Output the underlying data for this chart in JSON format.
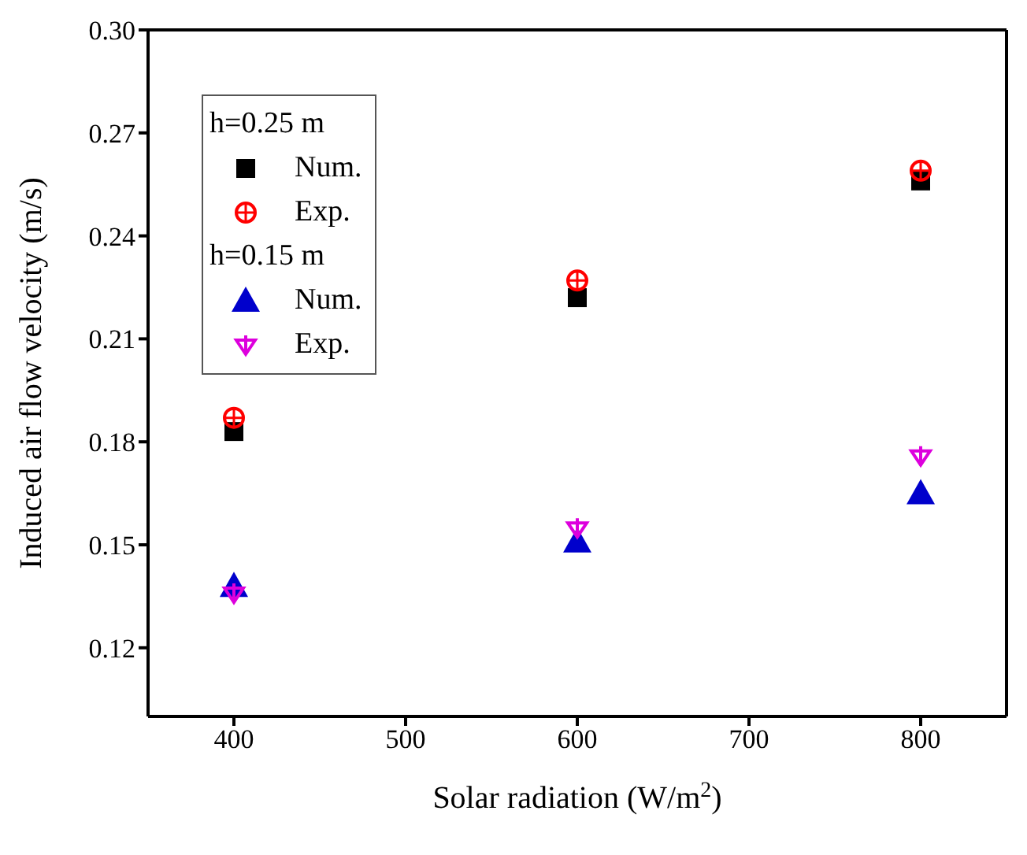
{
  "chart_data": {
    "type": "scatter",
    "xlabel": "Solar radiation (W/m$^{2}$)",
    "ylabel": "Induced air flow velocity (m/s)",
    "x": [
      400,
      600,
      800
    ],
    "xlim": [
      350,
      850
    ],
    "xticks": [
      400,
      500,
      600,
      700,
      800
    ],
    "ylim": [
      0.1,
      0.3
    ],
    "yticks": [
      0.12,
      0.15,
      0.18,
      0.21,
      0.24,
      0.27,
      {
        "value": 0.3,
        "label": "0.30"
      }
    ],
    "annotations": [
      "h=0.25 m",
      "h=0.15 m"
    ],
    "legend": "top left",
    "series": [
      {
        "name": "Num.",
        "color": "#000000",
        "marker": "square",
        "values": [
          0.183,
          0.222,
          0.256
        ]
      },
      {
        "name": "Exp.",
        "color": "#ff0000",
        "marker": "circle",
        "values": [
          0.187,
          0.227,
          0.259
        ]
      },
      {
        "name": "Num.",
        "color": "#0000cc",
        "marker": "triangle",
        "values": [
          0.138,
          0.151,
          0.165
        ]
      },
      {
        "name": "Exp.",
        "color": "#dd00dd",
        "marker": "cross",
        "values": [
          0.136,
          0.155,
          0.176
        ]
      }
    ]
  }
}
